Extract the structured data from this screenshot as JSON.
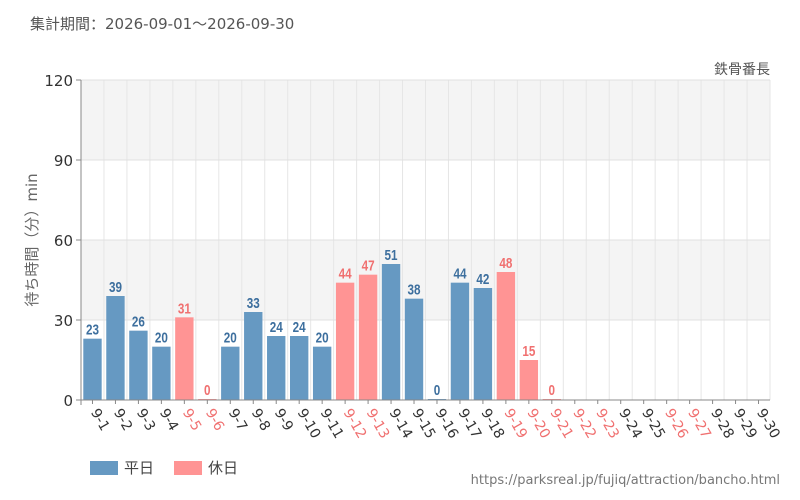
{
  "header": {
    "period": "集計期間：2026-09-01～2026-09-30",
    "attraction": "鉄骨番長"
  },
  "legend": {
    "weekday_label": "平日",
    "holiday_label": "休日"
  },
  "footer": {
    "source_url": "https://parksreal.jp/fujiq/attraction/bancho.html"
  },
  "colors": {
    "weekday": "#6699c2",
    "holiday": "#ff9494",
    "weekday_text": "#3d6f9e",
    "holiday_text": "#f07070"
  },
  "chart_data": {
    "type": "bar",
    "ylabel": "待ち時間（分）min",
    "ylim": [
      0,
      120
    ],
    "yticks": [
      0,
      30,
      60,
      90,
      120
    ],
    "categories": [
      "9-1",
      "9-2",
      "9-3",
      "9-4",
      "9-5",
      "9-6",
      "9-7",
      "9-8",
      "9-9",
      "9-10",
      "9-11",
      "9-12",
      "9-13",
      "9-14",
      "9-15",
      "9-16",
      "9-17",
      "9-18",
      "9-19",
      "9-20",
      "9-21",
      "9-22",
      "9-23",
      "9-24",
      "9-25",
      "9-26",
      "9-27",
      "9-28",
      "9-29",
      "9-30"
    ],
    "values": [
      23,
      39,
      26,
      20,
      31,
      0,
      20,
      33,
      24,
      24,
      20,
      44,
      47,
      51,
      38,
      0,
      44,
      42,
      48,
      15,
      0,
      null,
      null,
      null,
      null,
      null,
      null,
      null,
      null,
      null
    ],
    "day_type": [
      "weekday",
      "weekday",
      "weekday",
      "weekday",
      "holiday",
      "holiday",
      "weekday",
      "weekday",
      "weekday",
      "weekday",
      "weekday",
      "holiday",
      "holiday",
      "weekday",
      "weekday",
      "weekday",
      "weekday",
      "weekday",
      "holiday",
      "holiday",
      "holiday",
      "holiday",
      "holiday",
      "weekday",
      "weekday",
      "holiday",
      "holiday",
      "weekday",
      "weekday",
      "weekday"
    ]
  }
}
